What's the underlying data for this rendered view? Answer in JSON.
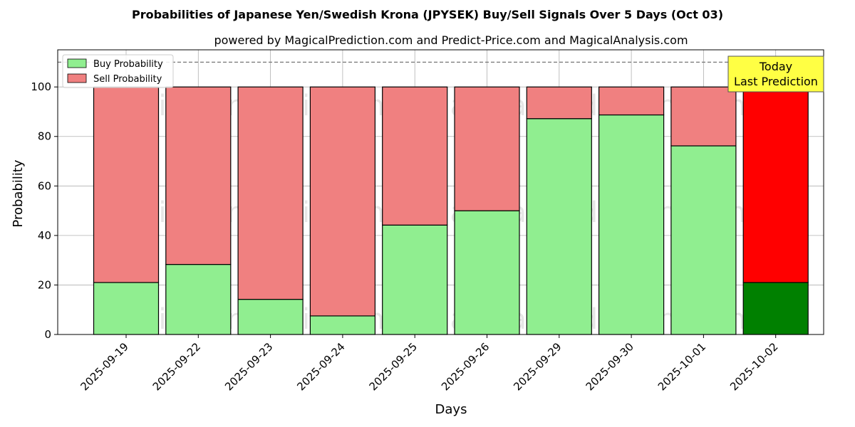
{
  "chart_data": {
    "type": "bar",
    "stacked": true,
    "title": "Probabilities of Japanese Yen/Swedish Krona (JPYSEK) Buy/Sell Signals Over 5 Days (Oct 03)",
    "subtitle": "powered by MagicalPrediction.com and Predict-Price.com and MagicalAnalysis.com",
    "xlabel": "Days",
    "ylabel": "Probability",
    "ylim": [
      0,
      115
    ],
    "yticks": [
      0,
      20,
      40,
      60,
      80,
      100
    ],
    "reference_line": 110,
    "grid": true,
    "legend_position": "top-left",
    "categories": [
      "2025-09-19",
      "2025-09-22",
      "2025-09-23",
      "2025-09-24",
      "2025-09-25",
      "2025-09-26",
      "2025-09-29",
      "2025-09-30",
      "2025-10-01",
      "2025-10-02"
    ],
    "series": [
      {
        "name": "Buy Probability",
        "color": "#90ee90",
        "highlight_color": "#008000",
        "values": [
          21,
          28.3,
          14.2,
          7.5,
          44.2,
          50,
          87.2,
          88.7,
          76.2,
          21
        ]
      },
      {
        "name": "Sell Probability",
        "color": "#f08080",
        "highlight_color": "#ff0000",
        "values": [
          79,
          71.7,
          85.8,
          92.5,
          55.8,
          50,
          12.8,
          11.3,
          23.8,
          79
        ]
      }
    ],
    "highlight_index": 9,
    "annotation": {
      "line1": "Today",
      "line2": "Last Prediction",
      "color": "#ffff44"
    },
    "watermarks": [
      "MagicalAnalysis.com",
      "MagicalPrediction.com"
    ]
  }
}
